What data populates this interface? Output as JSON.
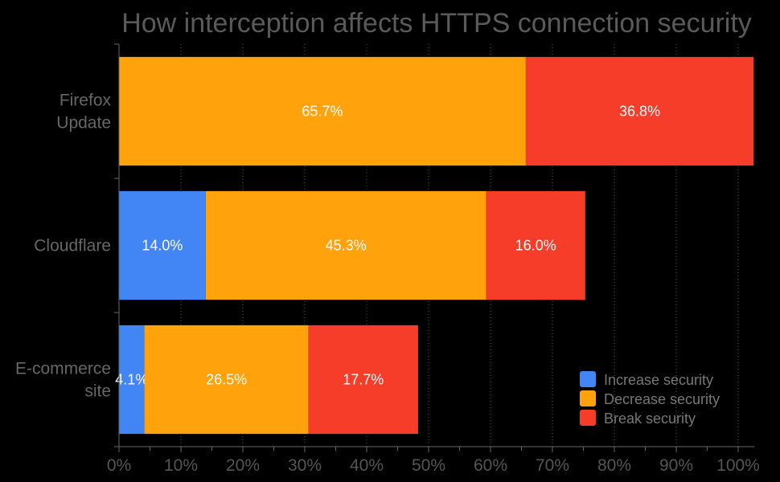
{
  "chart_data": {
    "type": "bar",
    "orientation": "horizontal",
    "stacked": true,
    "title": "How interception affects HTTPS connection security",
    "categories": [
      [
        "Firefox",
        "Update"
      ],
      [
        "Cloudflare"
      ],
      [
        "E-commerce",
        "site"
      ]
    ],
    "series": [
      {
        "name": "Increase security",
        "color": "#4285f4",
        "values": [
          0,
          14.0,
          4.1
        ],
        "labels": [
          "",
          "14.0%",
          "4.1%"
        ]
      },
      {
        "name": "Decrease security",
        "color": "#ffa20c",
        "values": [
          65.7,
          45.3,
          26.5
        ],
        "labels": [
          "65.7%",
          "45.3%",
          "26.5%"
        ]
      },
      {
        "name": "Break security",
        "color": "#f63d2a",
        "values": [
          36.8,
          16.0,
          17.7
        ],
        "labels": [
          "36.8%",
          "16.0%",
          "17.7%"
        ]
      }
    ],
    "xlim": [
      0,
      100
    ],
    "xticks": [
      "0%",
      "10%",
      "20%",
      "30%",
      "40%",
      "50%",
      "60%",
      "70%",
      "80%",
      "90%",
      "100%"
    ],
    "grid": true,
    "legend_position": "bottom-right",
    "background": "#000000"
  }
}
